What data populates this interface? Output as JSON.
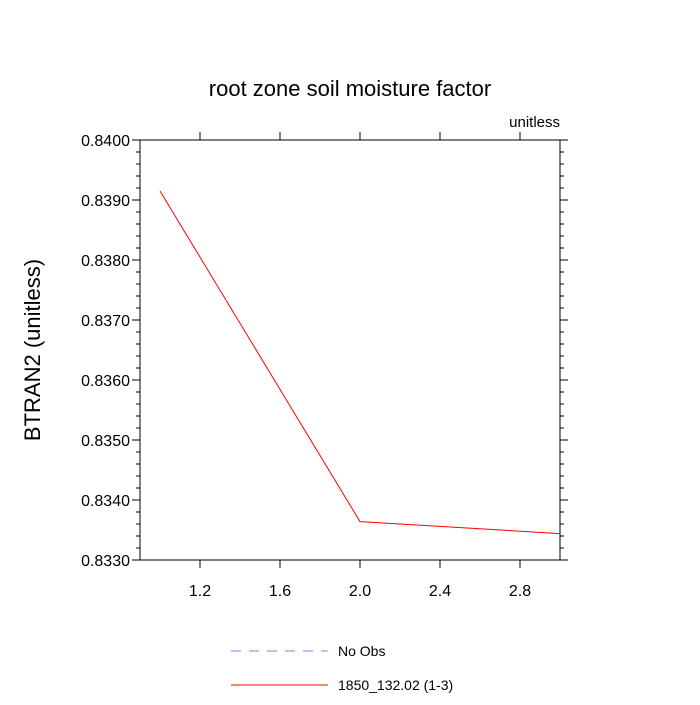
{
  "chart_data": {
    "type": "line",
    "title": "root zone soil moisture factor",
    "units_label": "unitless",
    "ylabel": "BTRAN2  (unitless)",
    "xlabel": "",
    "xlim": [
      0.9,
      3.0
    ],
    "ylim": [
      0.833,
      0.84
    ],
    "xticks": [
      1.2,
      1.6,
      2.0,
      2.4,
      2.8
    ],
    "xtick_labels": [
      "1.2",
      "1.6",
      "2.0",
      "2.4",
      "2.8"
    ],
    "yticks": [
      0.833,
      0.834,
      0.835,
      0.836,
      0.837,
      0.838,
      0.839,
      0.84
    ],
    "ytick_labels": [
      "0.8330",
      "0.8340",
      "0.8350",
      "0.8360",
      "0.8370",
      "0.8380",
      "0.8390",
      "0.8400"
    ],
    "grid": false,
    "legend_position": "bottom",
    "series": [
      {
        "name": "No Obs",
        "color": "#8080ff",
        "dash": "dashed",
        "x": [],
        "y": []
      },
      {
        "name": "1850_132.02 (1-3)",
        "color": "#ff0000",
        "dash": "solid",
        "x": [
          1.0,
          2.0,
          3.0
        ],
        "y": [
          0.83915,
          0.83364,
          0.83344
        ]
      }
    ]
  }
}
